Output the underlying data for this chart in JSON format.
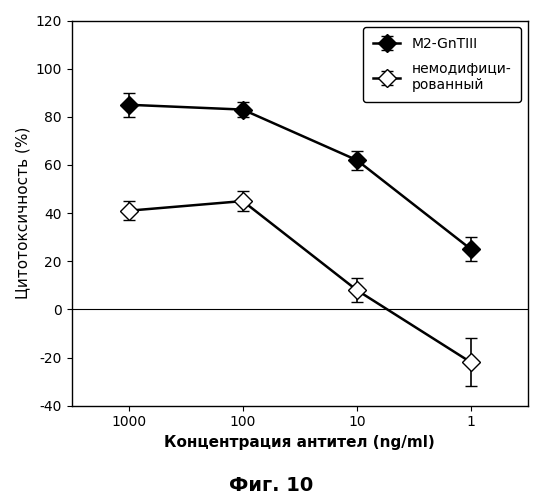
{
  "title": "Фиг. 10",
  "xlabel": "Концентрация антител (ng/ml)",
  "ylabel": "Цитотоксичность (%)",
  "x_positions": [
    1,
    2,
    3,
    4
  ],
  "x_labels": [
    "1000",
    "100",
    "10",
    "1"
  ],
  "series1_label": "M2-GnTIII",
  "series1_y": [
    85,
    83,
    62,
    25
  ],
  "series1_yerr": [
    5,
    3,
    4,
    5
  ],
  "series2_label": "немодифици-\nрованный",
  "series2_y": [
    41,
    45,
    8,
    -22
  ],
  "series2_yerr": [
    4,
    4,
    5,
    10
  ],
  "ylim": [
    -40,
    120
  ],
  "yticks": [
    -40,
    -20,
    0,
    20,
    40,
    60,
    80,
    100,
    120
  ],
  "marker_size": 9,
  "linewidth": 1.8,
  "capsize": 4,
  "elinewidth": 1.2,
  "background": "#ffffff",
  "legend_fontsize": 10,
  "axis_label_fontsize": 11,
  "tick_fontsize": 10,
  "title_fontsize": 14
}
